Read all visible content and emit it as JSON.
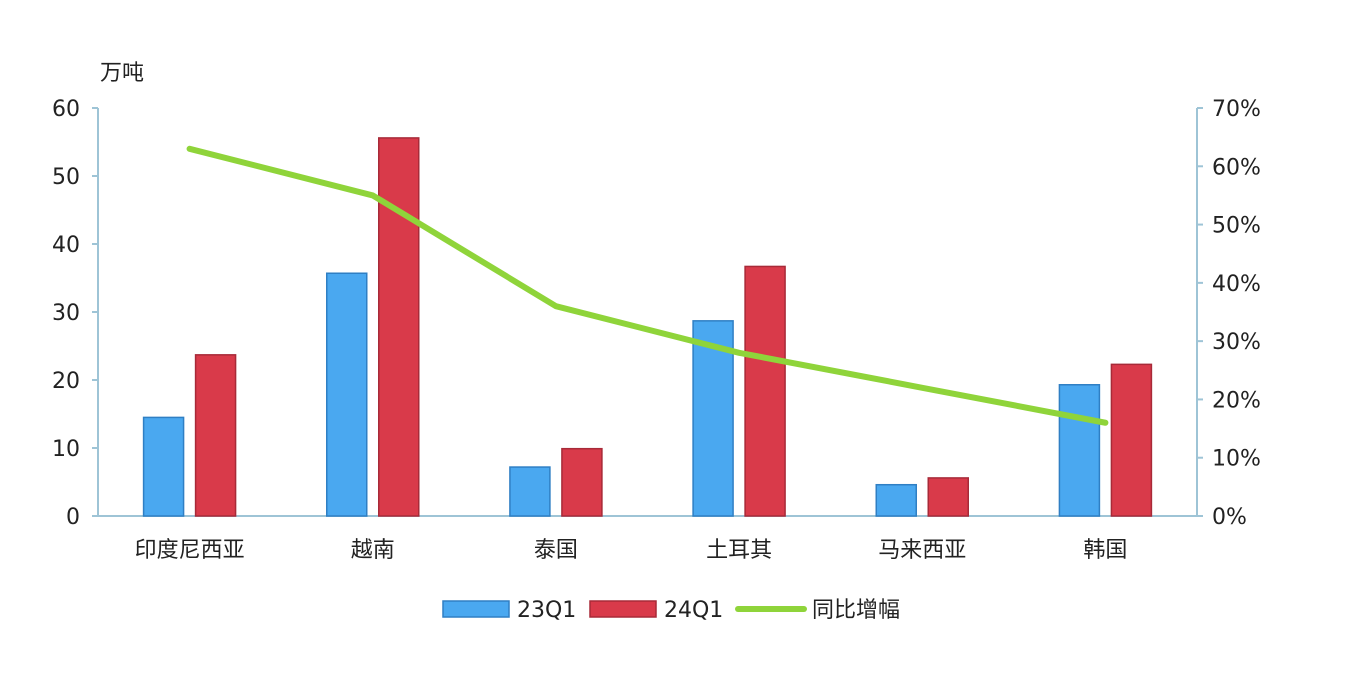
{
  "chart_data": {
    "type": "bar",
    "y_unit_label": "万吨",
    "categories": [
      "印度尼西亚",
      "越南",
      "泰国",
      "土耳其",
      "马来西亚",
      "韩国"
    ],
    "series": [
      {
        "name": "23Q1",
        "type": "bar",
        "axis": "left",
        "color": "#4aa8f0",
        "stroke": "#2f7fc4",
        "values": [
          14.5,
          35.7,
          7.2,
          28.7,
          4.6,
          19.3
        ]
      },
      {
        "name": "24Q1",
        "type": "bar",
        "axis": "left",
        "color": "#d93a4a",
        "stroke": "#a82a38",
        "values": [
          23.7,
          55.6,
          9.9,
          36.7,
          5.6,
          22.3
        ]
      },
      {
        "name": "同比增幅",
        "type": "line",
        "axis": "right",
        "color": "#8fd43a",
        "values": [
          0.63,
          0.55,
          0.36,
          0.28,
          0.22,
          0.16
        ]
      }
    ],
    "y_left": {
      "min": 0,
      "max": 60,
      "ticks": [
        "0",
        "10",
        "20",
        "30",
        "40",
        "50",
        "60"
      ]
    },
    "y_right": {
      "min": 0,
      "max": 0.7,
      "ticks": [
        "0%",
        "10%",
        "20%",
        "30%",
        "40%",
        "50%",
        "60%",
        "70%"
      ]
    },
    "grid": false,
    "legend": "bottom"
  }
}
